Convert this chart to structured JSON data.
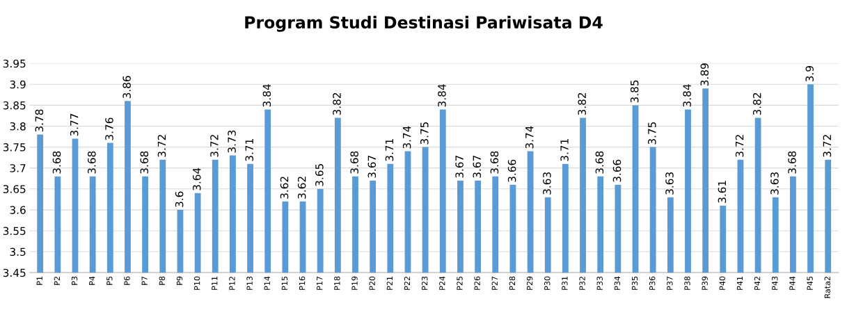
{
  "chart_data": {
    "type": "bar",
    "title": "Program Studi Destinasi Pariwisata D4",
    "categories": [
      "P1",
      "P2",
      "P3",
      "P4",
      "P5",
      "P6",
      "P7",
      "P8",
      "P9",
      "P10",
      "P11",
      "P12",
      "P13",
      "P14",
      "P15",
      "P16",
      "P17",
      "P18",
      "P19",
      "P20",
      "P21",
      "P22",
      "P23",
      "P24",
      "P25",
      "P26",
      "P27",
      "P28",
      "P29",
      "P30",
      "P31",
      "P32",
      "P33",
      "P34",
      "P35",
      "P36",
      "P37",
      "P38",
      "P39",
      "P40",
      "P41",
      "P42",
      "P43",
      "P44",
      "P45",
      "Rata2"
    ],
    "values": [
      3.78,
      3.68,
      3.77,
      3.68,
      3.76,
      3.86,
      3.68,
      3.72,
      3.6,
      3.64,
      3.72,
      3.73,
      3.71,
      3.84,
      3.62,
      3.62,
      3.65,
      3.82,
      3.68,
      3.67,
      3.71,
      3.74,
      3.75,
      3.84,
      3.67,
      3.67,
      3.68,
      3.66,
      3.74,
      3.63,
      3.71,
      3.82,
      3.68,
      3.66,
      3.85,
      3.75,
      3.63,
      3.84,
      3.89,
      3.61,
      3.72,
      3.82,
      3.63,
      3.68,
      3.9,
      3.72
    ],
    "color": "#5b9bd5",
    "ylim": [
      3.45,
      3.95
    ],
    "yticks": [
      3.45,
      3.5,
      3.55,
      3.6,
      3.65,
      3.7,
      3.75,
      3.8,
      3.85,
      3.9,
      3.95
    ],
    "grid": "y",
    "data_labels": true
  }
}
